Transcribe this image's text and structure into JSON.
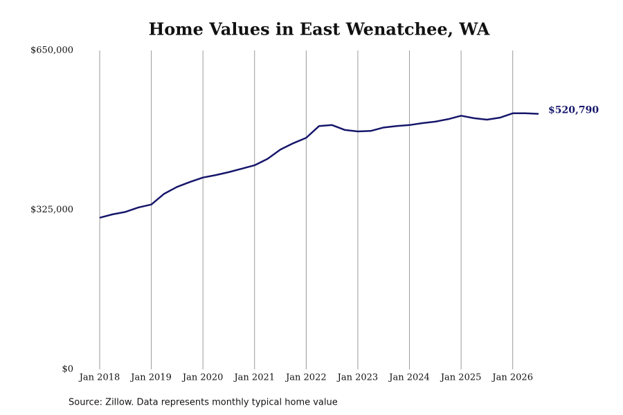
{
  "chart_data": {
    "type": "line",
    "title": "Home Values in East Wenatchee, WA",
    "source": "Source: Zillow. Data represents monthly typical home value",
    "x": [
      "2018-01",
      "2018-04",
      "2018-07",
      "2018-10",
      "2019-01",
      "2019-04",
      "2019-07",
      "2019-10",
      "2020-01",
      "2020-04",
      "2020-07",
      "2020-10",
      "2021-01",
      "2021-04",
      "2021-07",
      "2021-10",
      "2022-01",
      "2022-04",
      "2022-07",
      "2022-10",
      "2023-01",
      "2023-04",
      "2023-07",
      "2023-10",
      "2024-01",
      "2024-04",
      "2024-07",
      "2024-10",
      "2025-01",
      "2025-04",
      "2025-07",
      "2025-10",
      "2026-01",
      "2026-04",
      "2026-07"
    ],
    "series": [
      {
        "name": "Home value",
        "color": "#16166b",
        "values": [
          309000,
          316000,
          321000,
          330000,
          336000,
          358000,
          372000,
          382000,
          391000,
          396000,
          402000,
          409000,
          416000,
          429000,
          448000,
          461000,
          472000,
          496000,
          498000,
          488000,
          485000,
          486000,
          493000,
          496000,
          498000,
          502000,
          505000,
          510000,
          517000,
          512000,
          509000,
          513000,
          522000,
          522000,
          520790
        ],
        "value_labels": [
          null,
          null,
          null,
          null,
          null,
          null,
          null,
          null,
          null,
          null,
          null,
          null,
          null,
          null,
          null,
          null,
          null,
          null,
          null,
          null,
          null,
          null,
          null,
          null,
          null,
          null,
          null,
          null,
          null,
          null,
          null,
          null,
          null,
          null,
          "$520,790"
        ]
      }
    ],
    "xlim": [
      "2018-01",
      "2026-07"
    ],
    "xticks": [
      {
        "value": "2018-01",
        "label": "Jan 2018"
      },
      {
        "value": "2019-01",
        "label": "Jan 2019"
      },
      {
        "value": "2020-01",
        "label": "Jan 2020"
      },
      {
        "value": "2021-01",
        "label": "Jan 2021"
      },
      {
        "value": "2022-01",
        "label": "Jan 2022"
      },
      {
        "value": "2023-01",
        "label": "Jan 2023"
      },
      {
        "value": "2024-01",
        "label": "Jan 2024"
      },
      {
        "value": "2025-01",
        "label": "Jan 2025"
      },
      {
        "value": "2026-01",
        "label": "Jan 2026"
      }
    ],
    "ylim": [
      0,
      650000
    ],
    "yticks": [
      {
        "value": 0,
        "label": "$0"
      },
      {
        "value": 325000,
        "label": "$325,000"
      },
      {
        "value": 650000,
        "label": "$650,000"
      }
    ],
    "grid": "x"
  }
}
